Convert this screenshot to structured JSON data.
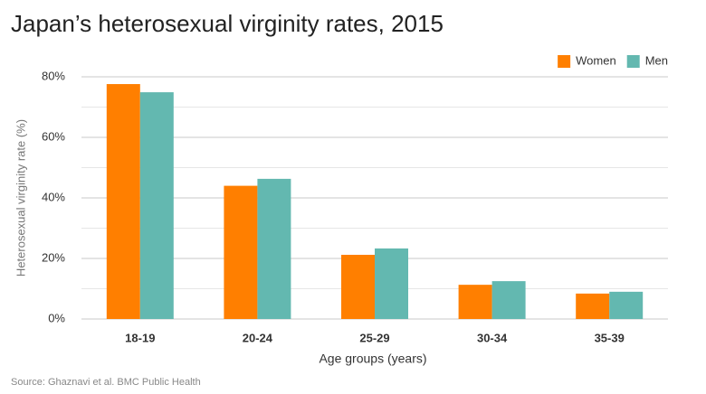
{
  "chart_data": {
    "type": "bar",
    "title": "Japan’s heterosexual virginity rates, 2015",
    "x_label": "Age groups (years)",
    "y_label": "Heterosexual virginity rate (%)",
    "source": "Source:  Ghaznavi et al. BMC Public Health",
    "categories": [
      "18-19",
      "20-24",
      "25-29",
      "30-34",
      "35-39"
    ],
    "series": [
      {
        "name": "Women",
        "color": "#ff7f00",
        "values": [
          77.6,
          44.0,
          21.2,
          11.3,
          8.4
        ]
      },
      {
        "name": "Men",
        "color": "#63b8b0",
        "values": [
          74.9,
          46.3,
          23.3,
          12.5,
          9.0
        ]
      }
    ],
    "ylim": [
      0,
      80
    ],
    "yticks": [
      {
        "value": 0,
        "label": "0%"
      },
      {
        "value": 20,
        "label": "20%"
      },
      {
        "value": 40,
        "label": "40%"
      },
      {
        "value": 60,
        "label": "60%"
      },
      {
        "value": 80,
        "label": "80%"
      }
    ],
    "minor_yticks": [
      10,
      30,
      50,
      70
    ],
    "grid": true,
    "legend": "top-right"
  }
}
